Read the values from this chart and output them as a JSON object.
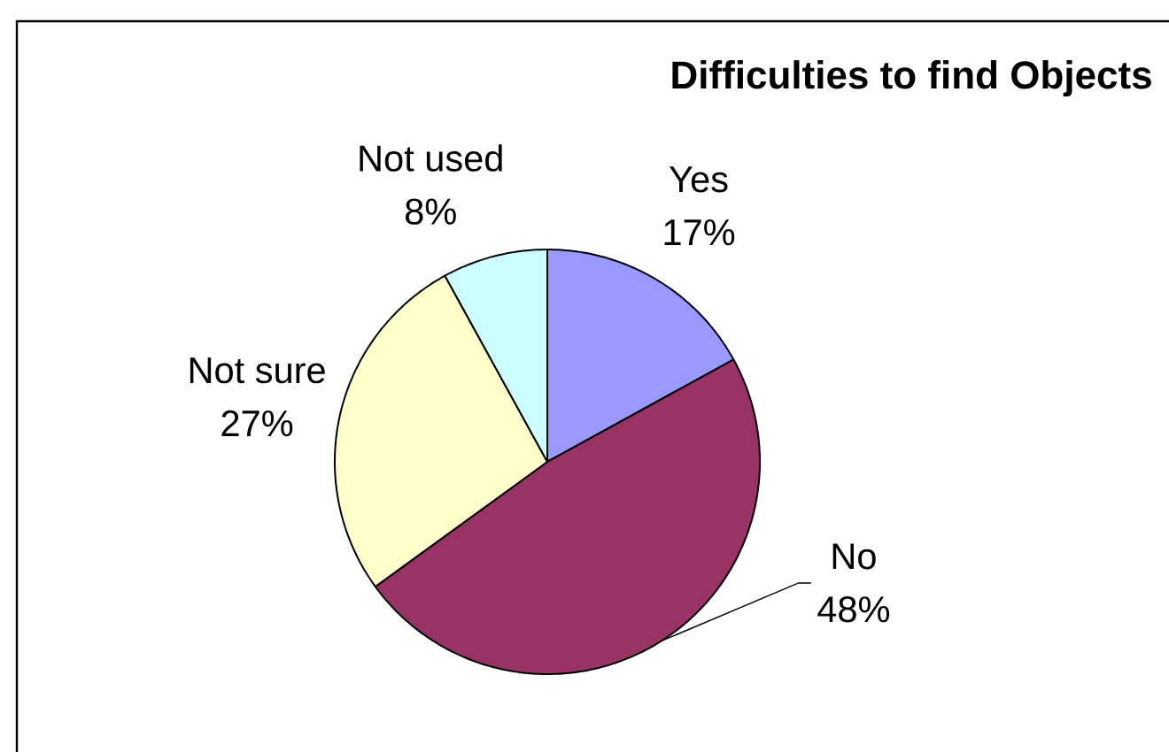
{
  "chart_data": {
    "type": "pie",
    "title": "Difficulties to find Objects",
    "categories": [
      "Yes",
      "No",
      "Not sure",
      "Not used"
    ],
    "values": [
      17,
      48,
      27,
      8
    ],
    "value_labels": [
      "17%",
      "48%",
      "27%",
      "8%"
    ],
    "colors": [
      "#9999ff",
      "#993366",
      "#ffffcc",
      "#ccffff"
    ]
  }
}
